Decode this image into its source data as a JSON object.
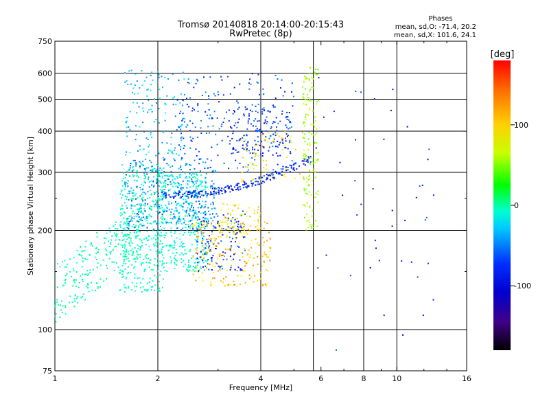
{
  "chart_data": {
    "type": "scatter",
    "title": "Tromsø 20140818 20:14:00-20:15:43",
    "subtitle": "RwPretec (8p)",
    "xlabel": "Frequency [MHz]",
    "ylabel": "Stationary phase Virtual Height [km]",
    "x_scale": "log",
    "y_scale": "log",
    "xlim": [
      1,
      16
    ],
    "ylim": [
      75,
      750
    ],
    "x_ticks": [
      {
        "value": 1,
        "label": "1"
      },
      {
        "value": 2,
        "label": "2"
      },
      {
        "value": 4,
        "label": "4"
      },
      {
        "value": 6,
        "label": "6"
      },
      {
        "value": 8,
        "label": "8"
      },
      {
        "value": 10,
        "label": "10"
      },
      {
        "value": 16,
        "label": "16"
      }
    ],
    "y_ticks": [
      {
        "value": 75,
        "label": "75"
      },
      {
        "value": 100,
        "label": "100"
      },
      {
        "value": 200,
        "label": "200"
      },
      {
        "value": 300,
        "label": "300"
      },
      {
        "value": 400,
        "label": "400"
      },
      {
        "value": 500,
        "label": "500"
      },
      {
        "value": 600,
        "label": "600"
      },
      {
        "value": 750,
        "label": "750"
      }
    ],
    "x_gridlines": [
      2,
      4,
      5.7,
      8,
      10
    ],
    "y_gridlines": [
      100,
      200,
      300,
      400,
      500,
      600
    ],
    "stats": {
      "heading": "Phases",
      "line_o": "mean, sd,O: -71.4, 20.2",
      "line_x": "mean, sd,X: 101.6, 24.1"
    },
    "colorbar": {
      "label": "[deg]",
      "range": [
        -180,
        180
      ],
      "ticks": [
        {
          "value": 100,
          "label": "100"
        },
        {
          "value": 0,
          "label": "0"
        },
        {
          "value": -100,
          "label": "-100"
        }
      ]
    },
    "clusters": [
      {
        "x": [
          1.0,
          1.8
        ],
        "y": [
          105,
          240
        ],
        "phase": -15,
        "count": 260,
        "shape": "band"
      },
      {
        "x": [
          1.55,
          2.1
        ],
        "y": [
          130,
          320
        ],
        "phase": -20,
        "count": 380,
        "shape": "box"
      },
      {
        "x": [
          2.0,
          2.8
        ],
        "y": [
          150,
          300
        ],
        "phase": -25,
        "count": 380,
        "shape": "box"
      },
      {
        "x": [
          1.6,
          3.0
        ],
        "y": [
          200,
          330
        ],
        "phase": -70,
        "count": 320,
        "shape": "box"
      },
      {
        "x": [
          2.6,
          3.6
        ],
        "y": [
          150,
          230
        ],
        "phase": -90,
        "count": 140,
        "shape": "box"
      },
      {
        "x": [
          1.6,
          2.4
        ],
        "y": [
          330,
          620
        ],
        "phase": -55,
        "count": 140,
        "shape": "box"
      },
      {
        "x": [
          2.3,
          5.0
        ],
        "y": [
          300,
          600
        ],
        "phase": -85,
        "count": 220,
        "shape": "box"
      },
      {
        "x": [
          3.2,
          4.9
        ],
        "y": [
          330,
          470
        ],
        "phase": -95,
        "count": 120,
        "shape": "box"
      },
      {
        "x": [
          2.5,
          4.3
        ],
        "y": [
          135,
          215
        ],
        "phase": 125,
        "count": 200,
        "shape": "box"
      },
      {
        "x": [
          3.0,
          4.0
        ],
        "y": [
          195,
          245
        ],
        "phase": 115,
        "count": 70,
        "shape": "box"
      },
      {
        "x": [
          3.5,
          5.4
        ],
        "y": [
          280,
          400
        ],
        "phase": 115,
        "count": 70,
        "shape": "box"
      },
      {
        "x": [
          5.3,
          5.9
        ],
        "y": [
          200,
          640
        ],
        "phase": 80,
        "count": 150,
        "shape": "box"
      },
      {
        "x": [
          2.0,
          5.6
        ],
        "y": [
          255,
          330
        ],
        "phase": -100,
        "count": 210,
        "shape": "curve"
      },
      {
        "x": [
          5.8,
          13.0
        ],
        "y": [
          85,
          600
        ],
        "phase": -100,
        "count": 45,
        "shape": "box"
      }
    ]
  }
}
